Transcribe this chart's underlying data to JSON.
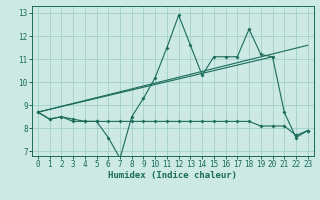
{
  "xlabel": "Humidex (Indice chaleur)",
  "xlim": [
    -0.5,
    23.5
  ],
  "ylim": [
    6.8,
    13.3
  ],
  "yticks": [
    7,
    8,
    9,
    10,
    11,
    12,
    13
  ],
  "xticks": [
    0,
    1,
    2,
    3,
    4,
    5,
    6,
    7,
    8,
    9,
    10,
    11,
    12,
    13,
    14,
    15,
    16,
    17,
    18,
    19,
    20,
    21,
    22,
    23
  ],
  "bg_color": "#cce9e4",
  "grid_color": "#99ccc4",
  "line_color": "#1a6b5a",
  "series1_x": [
    0,
    1,
    2,
    3,
    4,
    5,
    6,
    7,
    8,
    9,
    10,
    11,
    12,
    13,
    14,
    15,
    16,
    17,
    18,
    19,
    20,
    21,
    22,
    23
  ],
  "series1_y": [
    8.7,
    8.4,
    8.5,
    8.3,
    8.3,
    8.3,
    7.6,
    6.7,
    8.5,
    9.3,
    10.2,
    11.5,
    12.9,
    11.6,
    10.3,
    11.1,
    11.1,
    11.1,
    12.3,
    11.2,
    11.1,
    8.7,
    7.6,
    7.9
  ],
  "series2_x": [
    0,
    1,
    2,
    3,
    4,
    5,
    6,
    7,
    8,
    9,
    10,
    11,
    12,
    13,
    14,
    15,
    16,
    17,
    18,
    19,
    20,
    21,
    22,
    23
  ],
  "series2_y": [
    8.7,
    8.4,
    8.5,
    8.4,
    8.3,
    8.3,
    8.3,
    8.3,
    8.3,
    8.3,
    8.3,
    8.3,
    8.3,
    8.3,
    8.3,
    8.3,
    8.3,
    8.3,
    8.3,
    8.1,
    8.1,
    8.1,
    7.7,
    7.9
  ],
  "series3_x": [
    0,
    23
  ],
  "series3_y": [
    8.7,
    11.6
  ],
  "series4_x": [
    0,
    20
  ],
  "series4_y": [
    8.7,
    11.1
  ]
}
